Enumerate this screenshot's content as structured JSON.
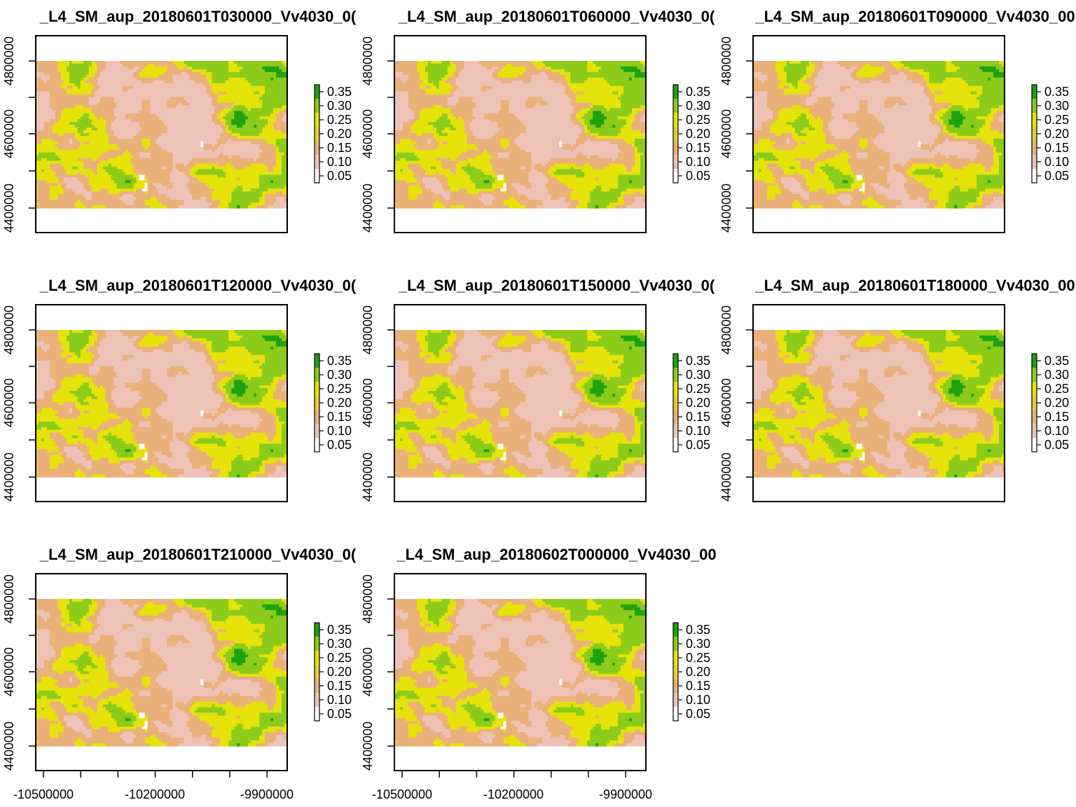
{
  "figure": {
    "legend_ticks": [
      "0.35",
      "0.30",
      "0.25",
      "0.20",
      "0.15",
      "0.10",
      "0.05"
    ],
    "y_ticks": [
      "4400000",
      "4600000",
      "4800000"
    ],
    "x_ticks": [
      "-10500000",
      "-10200000",
      "-9900000"
    ],
    "colors": {
      "high": "#1fa20f",
      "mid": "#e5e30a",
      "low_mid": "#e9b07a",
      "low": "#eec3b7",
      "min": "#ffffff",
      "frame": "#000000"
    }
  },
  "panels": [
    {
      "title": "_L4_SM_aup_20180601T030000_Vv4030_0("
    },
    {
      "title": "_L4_SM_aup_20180601T060000_Vv4030_0("
    },
    {
      "title": "_L4_SM_aup_20180601T090000_Vv4030_00"
    },
    {
      "title": "_L4_SM_aup_20180601T120000_Vv4030_0("
    },
    {
      "title": "_L4_SM_aup_20180601T150000_Vv4030_0("
    },
    {
      "title": "_L4_SM_aup_20180601T180000_Vv4030_00"
    },
    {
      "title": "_L4_SM_aup_20180601T210000_Vv4030_0("
    },
    {
      "title": "_L4_SM_aup_20180602T000000_Vv4030_00"
    }
  ]
}
